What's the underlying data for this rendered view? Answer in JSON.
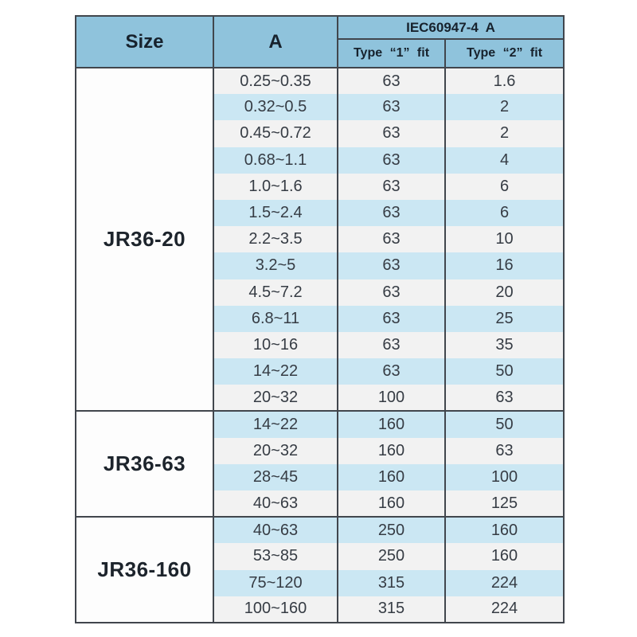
{
  "table": {
    "header": {
      "size": "Size",
      "a": "A",
      "iec": "IEC60947-4  A",
      "type1": "Type “1” fit",
      "type2": "Type “2” fit"
    },
    "sections": [
      {
        "size": "JR36-20",
        "rows": [
          {
            "a": "0.25~0.35",
            "type1": "63",
            "type2": "1.6"
          },
          {
            "a": "0.32~0.5",
            "type1": "63",
            "type2": "2"
          },
          {
            "a": "0.45~0.72",
            "type1": "63",
            "type2": "2"
          },
          {
            "a": "0.68~1.1",
            "type1": "63",
            "type2": "4"
          },
          {
            "a": "1.0~1.6",
            "type1": "63",
            "type2": "6"
          },
          {
            "a": "1.5~2.4",
            "type1": "63",
            "type2": "6"
          },
          {
            "a": "2.2~3.5",
            "type1": "63",
            "type2": "10"
          },
          {
            "a": "3.2~5",
            "type1": "63",
            "type2": "16"
          },
          {
            "a": "4.5~7.2",
            "type1": "63",
            "type2": "20"
          },
          {
            "a": "6.8~11",
            "type1": "63",
            "type2": "25"
          },
          {
            "a": "10~16",
            "type1": "63",
            "type2": "35"
          },
          {
            "a": "14~22",
            "type1": "63",
            "type2": "50"
          },
          {
            "a": "20~32",
            "type1": "100",
            "type2": "63"
          }
        ]
      },
      {
        "size": "JR36-63",
        "rows": [
          {
            "a": "14~22",
            "type1": "160",
            "type2": "50"
          },
          {
            "a": "20~32",
            "type1": "160",
            "type2": "63"
          },
          {
            "a": "28~45",
            "type1": "160",
            "type2": "100"
          },
          {
            "a": "40~63",
            "type1": "160",
            "type2": "125"
          }
        ]
      },
      {
        "size": "JR36-160",
        "rows": [
          {
            "a": "40~63",
            "type1": "250",
            "type2": "160"
          },
          {
            "a": "53~85",
            "type1": "250",
            "type2": "160"
          },
          {
            "a": "75~120",
            "type1": "315",
            "type2": "224"
          },
          {
            "a": "100~160",
            "type1": "315",
            "type2": "224"
          }
        ]
      }
    ],
    "colors": {
      "header_bg": "#8fc3dc",
      "stripe_blue": "#cbe7f3",
      "stripe_light": "#f2f2f2",
      "border": "#41464d",
      "header_text": "#17222d",
      "cell_text": "#363c44"
    }
  }
}
